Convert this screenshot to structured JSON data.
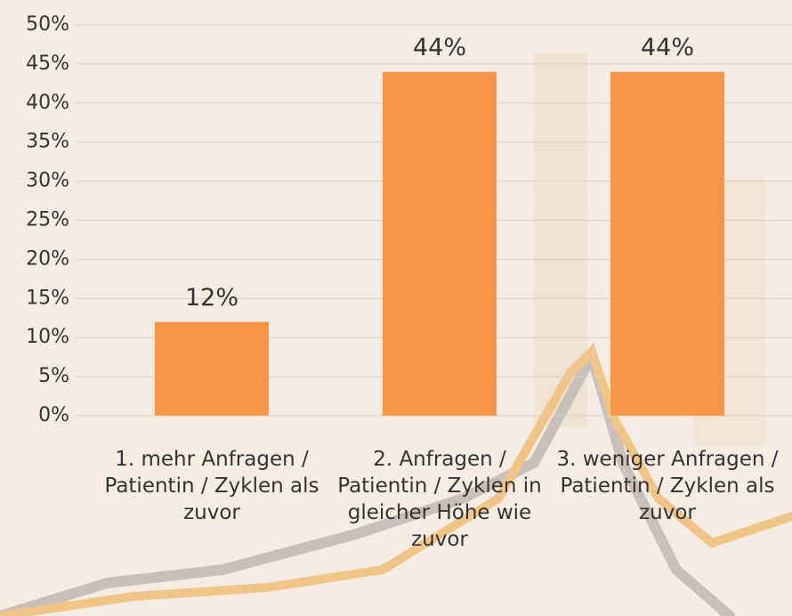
{
  "chart_data": {
    "type": "bar",
    "categories": [
      "1. mehr Anfragen / Patientin / Zyklen als zuvor",
      "2. Anfragen / Patientin / Zyklen in gleicher Höhe wie zuvor",
      "3. weniger Anfragen / Patientin / Zyklen als zuvor"
    ],
    "values": [
      12,
      44,
      44
    ],
    "value_labels": [
      "12%",
      "44%",
      "44%"
    ],
    "color": "#f79646",
    "ylim": [
      0,
      50
    ],
    "yticks": [
      {
        "value": 0,
        "label": "0%"
      },
      {
        "value": 5,
        "label": "5%"
      },
      {
        "value": 10,
        "label": "10%"
      },
      {
        "value": 15,
        "label": "15%"
      },
      {
        "value": 20,
        "label": "20%"
      },
      {
        "value": 25,
        "label": "25%"
      },
      {
        "value": 30,
        "label": "30%"
      },
      {
        "value": 35,
        "label": "35%"
      },
      {
        "value": 40,
        "label": "40%"
      },
      {
        "value": 45,
        "label": "45%"
      },
      {
        "value": 50,
        "label": "50%"
      }
    ],
    "grid": true
  }
}
